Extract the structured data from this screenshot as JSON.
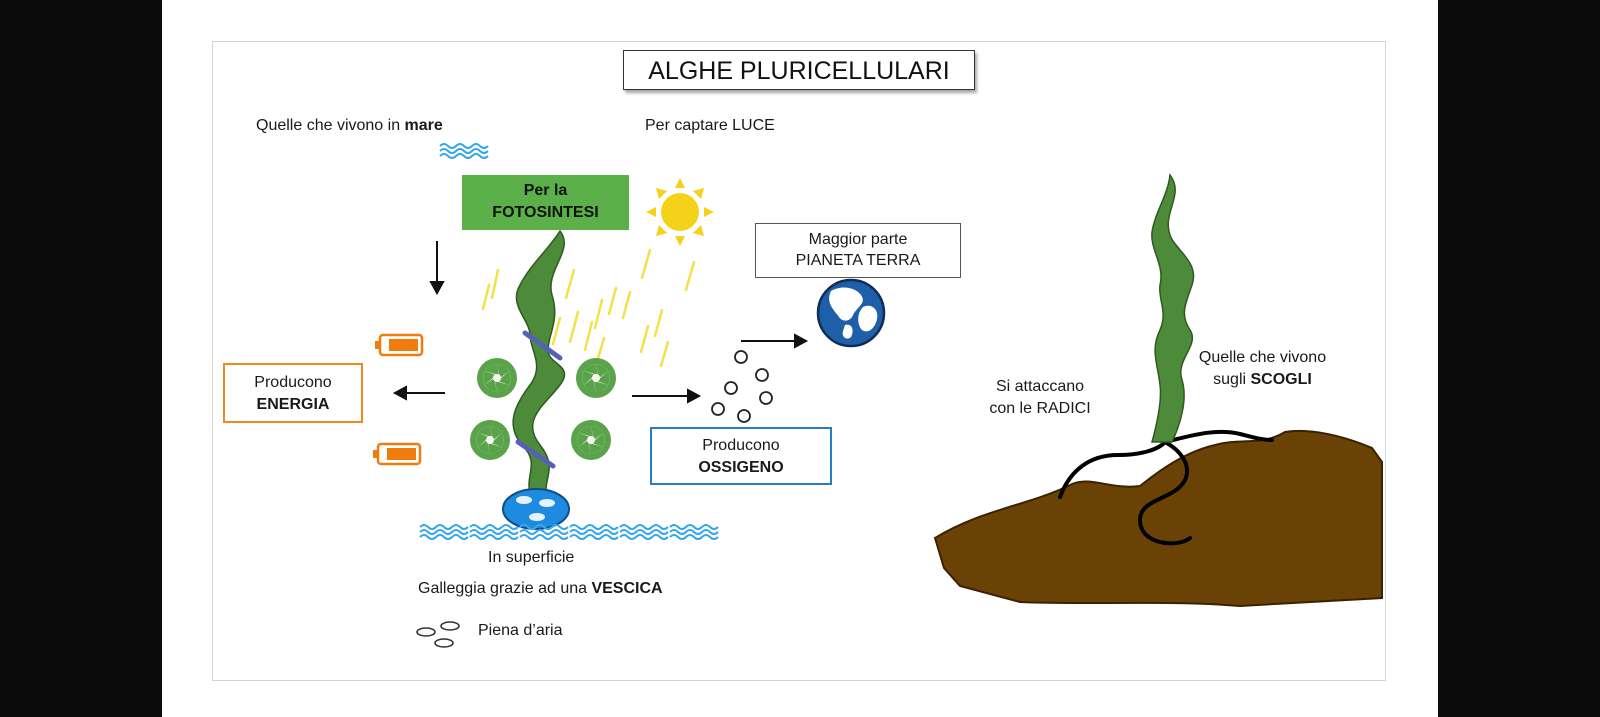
{
  "title": "ALGHE PLURICELLULARI",
  "sea": {
    "heading_prefix": "Quelle che vivono in ",
    "heading_bold": "mare",
    "light_label": "Per captare LUCE",
    "photosynthesis_line1": "Per la",
    "photosynthesis_line2": "FOTOSINTESI",
    "energy_line1": "Producono",
    "energy_line2": "ENERGIA",
    "oxygen_line1": "Producono",
    "oxygen_line2": "OSSIGENO",
    "planet_line1": "Maggior parte",
    "planet_line2": "PIANETA TERRA",
    "surface_label": "In superficie",
    "float_prefix": "Galleggia grazie ad una ",
    "float_bold": "VESCICA",
    "air_label": "Piena d’aria"
  },
  "rocks": {
    "heading_line1": "Quelle che vivono",
    "heading_line2_prefix": "sugli ",
    "heading_line2_bold": "SCOGLI",
    "roots_line1": "Si attaccano",
    "roots_line2": "con le RADICI"
  },
  "colors": {
    "alga_green": "#4d8a3a",
    "photosynthesis_box": "#5cb04a",
    "energy_border": "#ef8a1e",
    "oxygen_border": "#2b7bc0",
    "water_blue": "#38a7e8",
    "sun_yellow": "#f5d21a",
    "rock_brown": "#6b4205",
    "battery_orange": "#f07c0e"
  },
  "icons": [
    "waves-icon",
    "sun-icon",
    "earth-globe-icon",
    "battery-icon",
    "chloroplast-icon",
    "oxygen-bubble-icon",
    "air-bubble-icon",
    "arrow-icon"
  ]
}
